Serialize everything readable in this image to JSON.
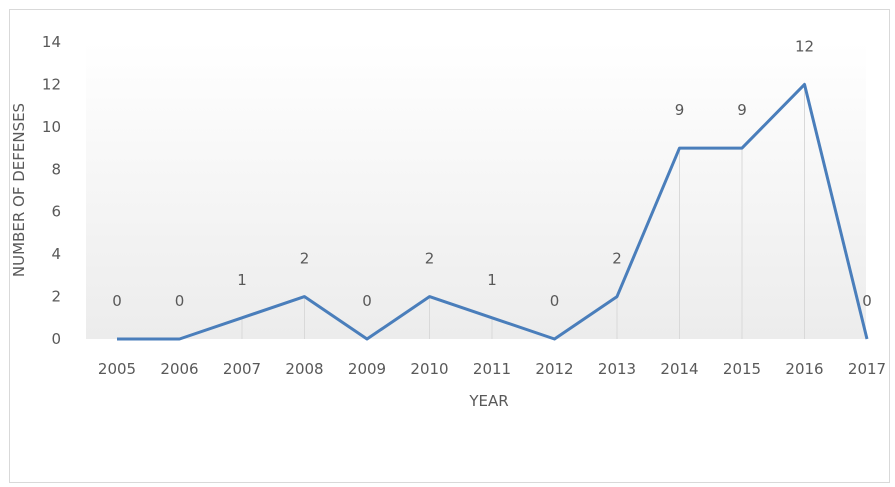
{
  "chart_data": {
    "type": "line",
    "categories": [
      "2005",
      "2006",
      "2007",
      "2008",
      "2009",
      "2010",
      "2011",
      "2012",
      "2013",
      "2014",
      "2015",
      "2016",
      "2017"
    ],
    "series": [
      {
        "values": [
          0,
          0,
          1,
          2,
          0,
          2,
          1,
          0,
          2,
          9,
          9,
          12,
          0
        ]
      }
    ],
    "xlabel": "YEAR",
    "ylabel": "NUMBER OF DEFENSES",
    "ylim": [
      0,
      14
    ],
    "yticks": [
      0,
      2,
      4,
      6,
      8,
      10,
      12,
      14
    ],
    "grid": "vertical drop lines at each category",
    "line_color": "#4a7ebb",
    "gridline_color": "#d9d9d9",
    "background_gradient_color": "#ececec",
    "data_labels": true
  }
}
